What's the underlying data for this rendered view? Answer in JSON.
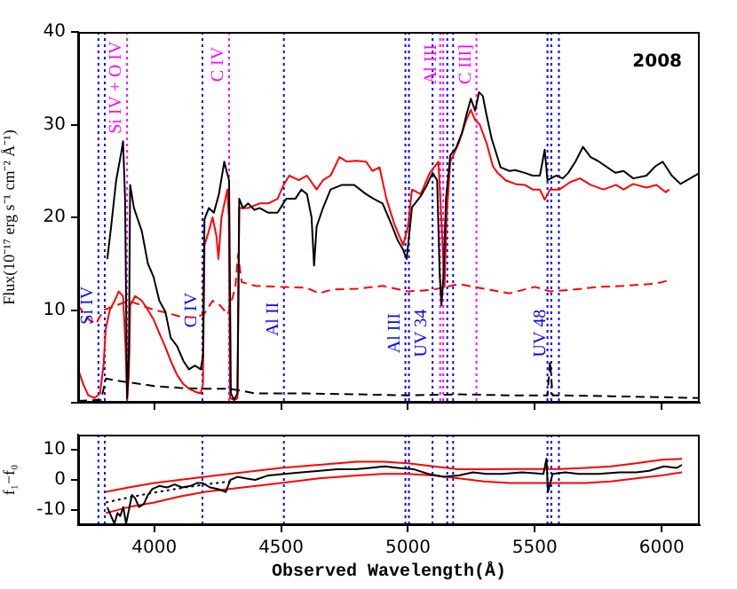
{
  "chart_data": [
    {
      "type": "line",
      "ylabel": "Flux(10⁻¹⁷ erg s⁻¹ cm⁻² Å⁻¹)",
      "xlim": [
        3700,
        6150
      ],
      "ylim": [
        0,
        40
      ],
      "xticks": [
        {
          "value": 4000,
          "label": null
        },
        {
          "value": 4500,
          "label": null
        },
        {
          "value": 5000,
          "label": null
        },
        {
          "value": 5500,
          "label": null
        },
        {
          "value": 6000,
          "label": null
        }
      ],
      "yticks": [
        {
          "value": 0,
          "label": null
        },
        10,
        20,
        30,
        40
      ],
      "tick_labels": "y",
      "grid": false,
      "legend": false,
      "series": [
        {
          "color": "#000000",
          "x": [
            3815,
            3830,
            3850,
            3870,
            3877,
            3885,
            3893,
            3900,
            3905,
            3920,
            3951,
            3975,
            3997,
            4020,
            4044,
            4065,
            4090,
            4115,
            4137,
            4160,
            4183,
            4192,
            4198,
            4215,
            4235,
            4255,
            4276,
            4285,
            4295,
            4302,
            4315,
            4328,
            4335,
            4350,
            4370,
            4395,
            4416,
            4450,
            4486,
            4520,
            4556,
            4580,
            4602,
            4620,
            4630,
            4640,
            4665,
            4695,
            4740,
            4788,
            4835,
            4865,
            4900,
            4934,
            4960,
            4981,
            4995,
            5016,
            5051,
            5075,
            5097,
            5115,
            5125,
            5132,
            5140,
            5150,
            5167,
            5190,
            5213,
            5230,
            5248,
            5265,
            5280,
            5295,
            5310,
            5330,
            5365,
            5400,
            5423,
            5460,
            5492,
            5520,
            5539,
            5550,
            5585,
            5610,
            5632,
            5660,
            5690,
            5720,
            5748,
            5780,
            5818,
            5850,
            5888,
            5940,
            5975,
            6004,
            6040,
            6074,
            6100,
            6132,
            6150
          ],
          "values": [
            15.5,
            19,
            24,
            27,
            28.2,
            22,
            0.5,
            5,
            23.5,
            21,
            18.5,
            15,
            13.6,
            11,
            9.8,
            7,
            6.1,
            4.5,
            3.6,
            4,
            3.6,
            5,
            19.8,
            21,
            20.5,
            22.5,
            26,
            25,
            24,
            1,
            0.3,
            1,
            22,
            21,
            21.5,
            20.8,
            21,
            20.5,
            20.5,
            22,
            22,
            23,
            22.5,
            20,
            14.8,
            19,
            21,
            23,
            23.5,
            23.5,
            22.5,
            22,
            21.5,
            19.3,
            17.5,
            16.5,
            15.5,
            21.1,
            22.3,
            23.5,
            24.8,
            24,
            14,
            10.5,
            13.7,
            22,
            26.7,
            27.5,
            29.1,
            31,
            32.8,
            31.5,
            33.5,
            33.1,
            31,
            28.5,
            25.4,
            25,
            25.1,
            24.8,
            24.5,
            24.5,
            27.3,
            24,
            24.5,
            24.2,
            24.8,
            26,
            27.6,
            26.5,
            26.1,
            25.5,
            24.8,
            25,
            24.2,
            24.5,
            25.5,
            26,
            24.5,
            23.6,
            24,
            24.5,
            24.8
          ]
        },
        {
          "color": "#ff0000",
          "x": [
            3700,
            3720,
            3740,
            3765,
            3786,
            3800,
            3809,
            3825,
            3844,
            3860,
            3877,
            3887,
            3893,
            3900,
            3905,
            3925,
            3951,
            3975,
            3997,
            4020,
            4044,
            4065,
            4090,
            4115,
            4137,
            4160,
            4183,
            4192,
            4198,
            4215,
            4230,
            4245,
            4253,
            4265,
            4288,
            4294,
            4299,
            4315,
            4328,
            4335,
            4370,
            4416,
            4450,
            4486,
            4510,
            4532,
            4570,
            4602,
            4640,
            4665,
            4695,
            4730,
            4760,
            4795,
            4835,
            4860,
            4888,
            4915,
            4946,
            4981,
            5000,
            5016,
            5050,
            5086,
            5120,
            5135,
            5144,
            5152,
            5167,
            5200,
            5230,
            5248,
            5265,
            5283,
            5310,
            5335,
            5353,
            5385,
            5423,
            5460,
            5492,
            5520,
            5539,
            5560,
            5597,
            5640,
            5678,
            5720,
            5771,
            5820,
            5850,
            5888,
            5940,
            5980,
            6016,
            6030
          ],
          "values": [
            3.6,
            2,
            0.8,
            0.5,
            1,
            4,
            8,
            10,
            11,
            12,
            11.5,
            6,
            0.3,
            3,
            10.5,
            11.5,
            11,
            10,
            9,
            7.5,
            6,
            4.5,
            3,
            2,
            1.5,
            1.2,
            1,
            2,
            17,
            18.5,
            20,
            18,
            15.5,
            20,
            23,
            20,
            0.5,
            0.3,
            0.5,
            21,
            21,
            21.5,
            21.5,
            22,
            23.5,
            24.5,
            24,
            24.5,
            23,
            24,
            24.5,
            26.5,
            26,
            26.1,
            26,
            25,
            25.4,
            22,
            19.3,
            17,
            19,
            23,
            22.5,
            24.8,
            26,
            18,
            12.5,
            20,
            26,
            28,
            30.5,
            31.6,
            30.5,
            30,
            28,
            25.5,
            24.8,
            24,
            23.6,
            23.5,
            23,
            23,
            21.9,
            23,
            23,
            23.8,
            24.2,
            23.5,
            23,
            23.5,
            23,
            23.6,
            23.2,
            23.5,
            22.7,
            23
          ]
        },
        {
          "color": "#ff0000",
          "line_style": "dashed",
          "x": [
            3700,
            3740,
            3770,
            3800,
            3850,
            3900,
            3950,
            4000,
            4050,
            4100,
            4150,
            4195,
            4230,
            4260,
            4290,
            4320,
            4330,
            4345,
            4400,
            4500,
            4600,
            4650,
            4700,
            4800,
            4900,
            5000,
            5100,
            5200,
            5300,
            5400,
            5500,
            5560,
            5650,
            5750,
            5850,
            5950,
            6000,
            6030
          ],
          "values": [
            10.5,
            9,
            8.5,
            10,
            10.5,
            11,
            10.5,
            10,
            9.7,
            9.3,
            9.2,
            9.5,
            11,
            10.5,
            9.5,
            12.5,
            16,
            13,
            12.6,
            12.5,
            12.4,
            11.8,
            12.2,
            12.3,
            12.6,
            12,
            12.2,
            12.8,
            12.3,
            11.8,
            12.5,
            12,
            12.2,
            12.5,
            12.6,
            12.8,
            13,
            13.2
          ]
        },
        {
          "color": "#000000",
          "line_style": "dashed",
          "x": [
            3700,
            3790,
            3810,
            3850,
            3900,
            3950,
            4000,
            4100,
            4200,
            4300,
            4400,
            4600,
            4800,
            5000,
            5200,
            5400,
            5550,
            5560,
            5570,
            5800,
            6000,
            6150
          ],
          "values": [
            0.2,
            0.3,
            2.6,
            2.4,
            2.2,
            2,
            1.8,
            1.6,
            1.5,
            1.5,
            1,
            1,
            0.9,
            0.8,
            0.9,
            0.8,
            0.8,
            4.5,
            0.8,
            0.7,
            0.6,
            0.5
          ]
        }
      ],
      "ref_lines": [
        {
          "axis": "x",
          "value": 3780,
          "color": "#0000ff",
          "line_style": "dotted"
        },
        {
          "axis": "x",
          "value": 3805,
          "color": "#0000ff",
          "line_style": "dotted"
        },
        {
          "axis": "x",
          "value": 4190,
          "color": "#0000ff",
          "line_style": "dotted"
        },
        {
          "axis": "x",
          "value": 4511,
          "color": "#0000ff",
          "line_style": "dotted"
        },
        {
          "axis": "x",
          "value": 4990,
          "color": "#0000ff",
          "line_style": "dotted"
        },
        {
          "axis": "x",
          "value": 5004,
          "color": "#0000ff",
          "line_style": "dotted"
        },
        {
          "axis": "x",
          "value": 5097,
          "color": "#0000ff",
          "line_style": "dotted"
        },
        {
          "axis": "x",
          "value": 5155,
          "color": "#0000ff",
          "line_style": "dotted"
        },
        {
          "axis": "x",
          "value": 5178,
          "color": "#0000ff",
          "line_style": "dotted"
        },
        {
          "axis": "x",
          "value": 5550,
          "color": "#0000ff",
          "line_style": "dotted"
        },
        {
          "axis": "x",
          "value": 5565,
          "color": "#0000ff",
          "line_style": "dotted"
        },
        {
          "axis": "x",
          "value": 5595,
          "color": "#0000ff",
          "line_style": "dotted"
        },
        {
          "axis": "x",
          "value": 3893,
          "color": "#ff00ff",
          "line_style": "dotted"
        },
        {
          "axis": "x",
          "value": 4295,
          "color": "#ff00ff",
          "line_style": "dotted"
        },
        {
          "axis": "x",
          "value": 5127,
          "color": "#ff00ff",
          "line_style": "dotted"
        },
        {
          "axis": "x",
          "value": 5139,
          "color": "#ff00ff",
          "line_style": "dotted"
        },
        {
          "axis": "x",
          "value": 5270,
          "color": "#ff00ff",
          "line_style": "dotted"
        }
      ],
      "annotations": [
        "2008",
        {
          "text": "Si IV",
          "x": 3780,
          "y": 10.5
        },
        {
          "text": "C IV",
          "x": 4190,
          "y": 10
        },
        {
          "text": "Al II",
          "x": 4511,
          "y": 9
        },
        {
          "text": "Al III",
          "x": 4990,
          "y": 7.5
        },
        {
          "text": "UV 34",
          "x": 5097,
          "y": 7.5
        },
        {
          "text": "UV 48",
          "x": 5565,
          "y": 7.5
        },
        {
          "text": "Si IV + O IV",
          "x": 3893,
          "y": 34
        },
        {
          "text": "C IV",
          "x": 4295,
          "y": 36.5
        },
        {
          "text": "Al III",
          "x": 5133,
          "y": 36.5
        },
        {
          "text": "C III]",
          "x": 5270,
          "y": 36.5
        }
      ]
    },
    {
      "type": "line",
      "xlabel": "Observed Wavelength(Å)",
      "ylabel": "f₁−f₀",
      "xlim": [
        3700,
        6150
      ],
      "ylim": [
        -15,
        15
      ],
      "xticks": [
        4000,
        4500,
        5000,
        5500,
        6000
      ],
      "yticks": [
        -10,
        0,
        10
      ],
      "grid": false,
      "legend": false,
      "series": [
        {
          "color": "#000000",
          "x": [
            3815,
            3830,
            3843,
            3855,
            3866,
            3878,
            3889,
            3900,
            3912,
            3924,
            3940,
            3959,
            3975,
            3993,
            4020,
            4051,
            4080,
            4110,
            4143,
            4170,
            4190,
            4220,
            4250,
            4282,
            4300,
            4328,
            4360,
            4398,
            4450,
            4514,
            4580,
            4653,
            4720,
            4792,
            4850,
            4908,
            4960,
            5024,
            5080,
            5140,
            5200,
            5256,
            5310,
            5372,
            5450,
            5534,
            5546,
            5552,
            5570,
            5620,
            5673,
            5750,
            5835,
            5900,
            5951,
            6009,
            6060,
            6080
          ],
          "values": [
            -9.1,
            -12,
            -14.5,
            -11,
            -12,
            -9,
            -14.5,
            -10,
            -5,
            -6,
            -9,
            -8,
            -5,
            -3,
            -2,
            -2.5,
            -1.5,
            -2.5,
            -2,
            -1,
            -1,
            -2.5,
            -3,
            -4,
            0,
            1,
            0.5,
            0,
            1.5,
            2,
            2.5,
            3,
            3.5,
            3.5,
            4,
            4.5,
            4,
            3.5,
            2,
            1,
            1.5,
            2.5,
            2,
            2,
            2.5,
            2,
            7,
            -4,
            2,
            2.5,
            2,
            2,
            2.5,
            2.5,
            3,
            4.5,
            4,
            5
          ]
        },
        {
          "color": "#ff0000",
          "x": [
            3809,
            3900,
            4000,
            4100,
            4200,
            4350,
            4500,
            4650,
            4800,
            4900,
            5000,
            5100,
            5200,
            5300,
            5400,
            5500,
            5600,
            5700,
            5800,
            5900,
            6000,
            6080
          ],
          "values": [
            -4,
            -2.5,
            -1,
            0,
            1,
            2.5,
            4,
            5,
            6,
            6,
            5.5,
            4.5,
            3.5,
            3.5,
            3.6,
            3.6,
            3.6,
            4,
            4.5,
            5.5,
            6.7,
            7
          ]
        },
        {
          "color": "#ff0000",
          "x": [
            3809,
            3900,
            4000,
            4100,
            4200,
            4350,
            4500,
            4650,
            4800,
            4900,
            5000,
            5100,
            5200,
            5300,
            5400,
            5500,
            5600,
            5700,
            5800,
            5900,
            6000,
            6080
          ],
          "values": [
            -11,
            -9,
            -7.5,
            -5.5,
            -4,
            -2.5,
            -1,
            0.5,
            1.5,
            2,
            2,
            1.5,
            0.5,
            -0.5,
            -1,
            -1,
            -1,
            -1,
            -0.5,
            0.5,
            1.5,
            2.5
          ]
        },
        {
          "color": "#000000",
          "line_style": "dotted",
          "x": [
            3809,
            3900,
            4000,
            4100,
            4200,
            4300
          ],
          "values": [
            -7.5,
            -5.8,
            -4.2,
            -2.8,
            -1.5,
            -0.5
          ]
        }
      ],
      "ref_lines": [
        {
          "axis": "x",
          "value": 3780,
          "color": "#0000ff",
          "line_style": "dotted"
        },
        {
          "axis": "x",
          "value": 3805,
          "color": "#0000ff",
          "line_style": "dotted"
        },
        {
          "axis": "x",
          "value": 4190,
          "color": "#0000ff",
          "line_style": "dotted"
        },
        {
          "axis": "x",
          "value": 4511,
          "color": "#0000ff",
          "line_style": "dotted"
        },
        {
          "axis": "x",
          "value": 4990,
          "color": "#0000ff",
          "line_style": "dotted"
        },
        {
          "axis": "x",
          "value": 5004,
          "color": "#0000ff",
          "line_style": "dotted"
        },
        {
          "axis": "x",
          "value": 5097,
          "color": "#0000ff",
          "line_style": "dotted"
        },
        {
          "axis": "x",
          "value": 5155,
          "color": "#0000ff",
          "line_style": "dotted"
        },
        {
          "axis": "x",
          "value": 5178,
          "color": "#0000ff",
          "line_style": "dotted"
        },
        {
          "axis": "x",
          "value": 5550,
          "color": "#0000ff",
          "line_style": "dotted"
        },
        {
          "axis": "x",
          "value": 5565,
          "color": "#0000ff",
          "line_style": "dotted"
        },
        {
          "axis": "x",
          "value": 5595,
          "color": "#0000ff",
          "line_style": "dotted"
        }
      ]
    }
  ]
}
